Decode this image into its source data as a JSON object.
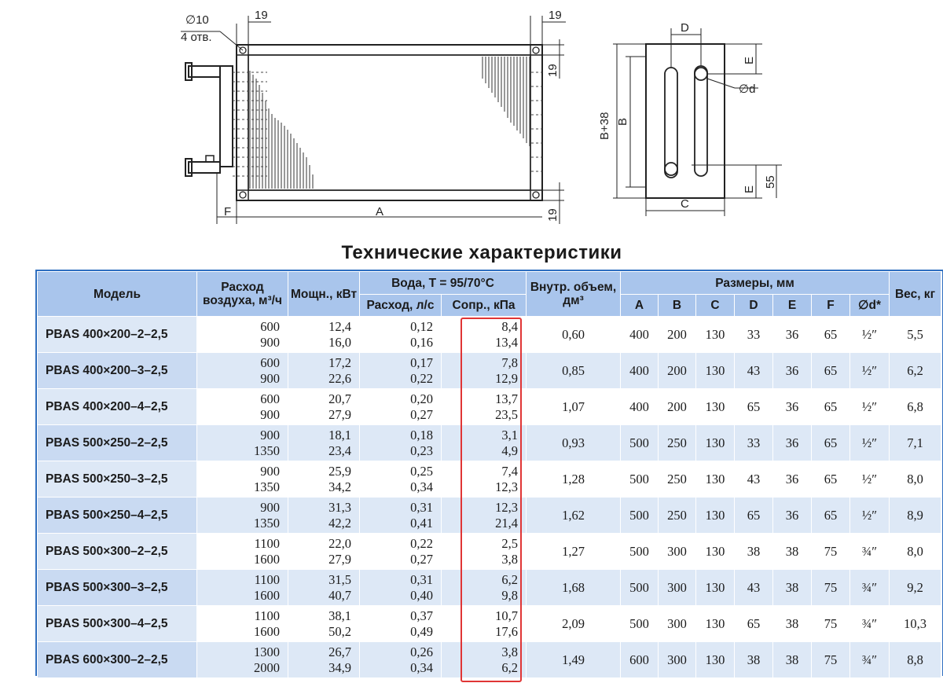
{
  "drawing": {
    "labels": {
      "hole_dia": "∅10",
      "holes": "4 отв.",
      "dim_19_top_left": "19",
      "dim_19_top_right": "19",
      "dim_19_right_mid": "19",
      "dim_19_bottom_right": "19",
      "dim_F": "F",
      "dim_A": "A",
      "dim_D": "D",
      "dim_E_top": "E",
      "dim_d": "∅d",
      "dim_B38": "B+38",
      "dim_B": "B",
      "dim_E_bottom": "E",
      "dim_55": "55",
      "dim_C": "C"
    }
  },
  "title": "Технические характеристики",
  "table": {
    "headers": {
      "model": "Модель",
      "air_flow": "Расход воздуха, м³/ч",
      "power": "Мощн., кВт",
      "water_group": "Вода, T = 95/70°C",
      "water_flow": "Расход, л/с",
      "water_res": "Сопр., кПа",
      "volume": "Внутр. объем, дм³",
      "dims_group": "Размеры, мм",
      "A": "A",
      "B": "B",
      "C": "C",
      "D": "D",
      "E": "E",
      "F": "F",
      "d": "∅d*",
      "weight": "Вес, кг"
    },
    "rows": [
      {
        "model": "PBAS 400×200–2–2,5",
        "air": [
          "600",
          "900"
        ],
        "power": [
          "12,4",
          "16,0"
        ],
        "flow": [
          "0,12",
          "0,16"
        ],
        "res": [
          "8,4",
          "13,4"
        ],
        "vol": "0,60",
        "A": "400",
        "B": "200",
        "C": "130",
        "D": "33",
        "E": "36",
        "F": "65",
        "d": "½″",
        "w": "5,5"
      },
      {
        "model": "PBAS 400×200–3–2,5",
        "air": [
          "600",
          "900"
        ],
        "power": [
          "17,2",
          "22,6"
        ],
        "flow": [
          "0,17",
          "0,22"
        ],
        "res": [
          "7,8",
          "12,9"
        ],
        "vol": "0,85",
        "A": "400",
        "B": "200",
        "C": "130",
        "D": "43",
        "E": "36",
        "F": "65",
        "d": "½″",
        "w": "6,2"
      },
      {
        "model": "PBAS 400×200–4–2,5",
        "air": [
          "600",
          "900"
        ],
        "power": [
          "20,7",
          "27,9"
        ],
        "flow": [
          "0,20",
          "0,27"
        ],
        "res": [
          "13,7",
          "23,5"
        ],
        "vol": "1,07",
        "A": "400",
        "B": "200",
        "C": "130",
        "D": "65",
        "E": "36",
        "F": "65",
        "d": "½″",
        "w": "6,8"
      },
      {
        "model": "PBAS 500×250–2–2,5",
        "air": [
          "900",
          "1350"
        ],
        "power": [
          "18,1",
          "23,4"
        ],
        "flow": [
          "0,18",
          "0,23"
        ],
        "res": [
          "3,1",
          "4,9"
        ],
        "vol": "0,93",
        "A": "500",
        "B": "250",
        "C": "130",
        "D": "33",
        "E": "36",
        "F": "65",
        "d": "½″",
        "w": "7,1"
      },
      {
        "model": "PBAS 500×250–3–2,5",
        "air": [
          "900",
          "1350"
        ],
        "power": [
          "25,9",
          "34,2"
        ],
        "flow": [
          "0,25",
          "0,34"
        ],
        "res": [
          "7,4",
          "12,3"
        ],
        "vol": "1,28",
        "A": "500",
        "B": "250",
        "C": "130",
        "D": "43",
        "E": "36",
        "F": "65",
        "d": "½″",
        "w": "8,0"
      },
      {
        "model": "PBAS 500×250–4–2,5",
        "air": [
          "900",
          "1350"
        ],
        "power": [
          "31,3",
          "42,2"
        ],
        "flow": [
          "0,31",
          "0,41"
        ],
        "res": [
          "12,3",
          "21,4"
        ],
        "vol": "1,62",
        "A": "500",
        "B": "250",
        "C": "130",
        "D": "65",
        "E": "36",
        "F": "65",
        "d": "½″",
        "w": "8,9"
      },
      {
        "model": "PBAS 500×300–2–2,5",
        "air": [
          "1100",
          "1600"
        ],
        "power": [
          "22,0",
          "27,9"
        ],
        "flow": [
          "0,22",
          "0,27"
        ],
        "res": [
          "2,5",
          "3,8"
        ],
        "vol": "1,27",
        "A": "500",
        "B": "300",
        "C": "130",
        "D": "38",
        "E": "38",
        "F": "75",
        "d": "¾″",
        "w": "8,0"
      },
      {
        "model": "PBAS 500×300–3–2,5",
        "air": [
          "1100",
          "1600"
        ],
        "power": [
          "31,5",
          "40,7"
        ],
        "flow": [
          "0,31",
          "0,40"
        ],
        "res": [
          "6,2",
          "9,8"
        ],
        "vol": "1,68",
        "A": "500",
        "B": "300",
        "C": "130",
        "D": "43",
        "E": "38",
        "F": "75",
        "d": "¾″",
        "w": "9,2"
      },
      {
        "model": "PBAS 500×300–4–2,5",
        "air": [
          "1100",
          "1600"
        ],
        "power": [
          "38,1",
          "50,2"
        ],
        "flow": [
          "0,37",
          "0,49"
        ],
        "res": [
          "10,7",
          "17,6"
        ],
        "vol": "2,09",
        "A": "500",
        "B": "300",
        "C": "130",
        "D": "65",
        "E": "38",
        "F": "75",
        "d": "¾″",
        "w": "10,3"
      },
      {
        "model": "PBAS 600×300–2–2,5",
        "air": [
          "1300",
          "2000"
        ],
        "power": [
          "26,7",
          "34,9"
        ],
        "flow": [
          "0,26",
          "0,34"
        ],
        "res": [
          "3,8",
          "6,2"
        ],
        "vol": "1,49",
        "A": "600",
        "B": "300",
        "C": "130",
        "D": "38",
        "E": "38",
        "F": "75",
        "d": "¾″",
        "w": "8,8"
      }
    ]
  },
  "colors": {
    "header_bg": "#a9c5ec",
    "row_alt_bg": "#dde8f6",
    "frame_blue": "#2f6fc0",
    "highlight_red": "#e03535"
  }
}
